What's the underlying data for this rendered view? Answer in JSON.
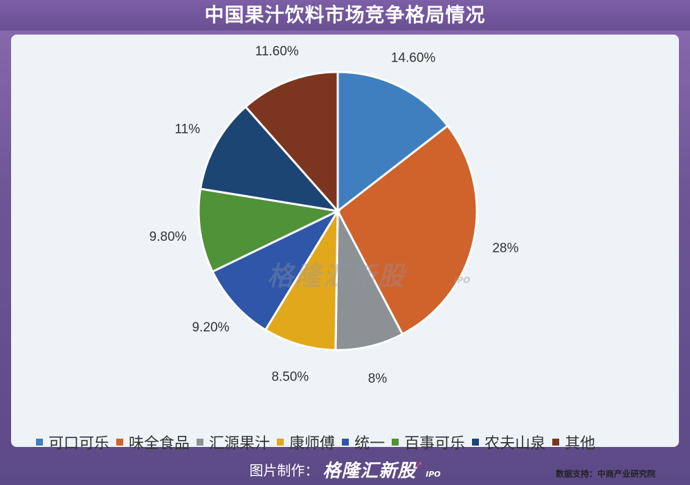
{
  "title": "中国果汁饮料市场竞争格局情况",
  "chart_data": {
    "type": "pie",
    "title": "",
    "slices": [
      {
        "name": "可口可乐",
        "value": 14.6,
        "label": "14.60%",
        "color": "#3f7fc0"
      },
      {
        "name": "味全食品",
        "value": 28,
        "label": "28%",
        "color": "#d0622b"
      },
      {
        "name": "汇源果汁",
        "value": 8,
        "label": "8%",
        "color": "#8b9195"
      },
      {
        "name": "康师傅",
        "value": 8.5,
        "label": "8.50%",
        "color": "#e2a81c"
      },
      {
        "name": "统一",
        "value": 9.2,
        "label": "9.20%",
        "color": "#2f56a8"
      },
      {
        "name": "百事可乐",
        "value": 9.8,
        "label": "9.80%",
        "color": "#4f9238"
      },
      {
        "name": "农夫山泉",
        "value": 11,
        "label": "11%",
        "color": "#1c4573"
      },
      {
        "name": "其他",
        "value": 11.6,
        "label": "11.60%",
        "color": "#7c3620"
      }
    ],
    "legend_position": "bottom"
  },
  "watermark": {
    "text": "格隆汇新股",
    "sub": "IPO"
  },
  "source": "数据支持：中商产业研究院",
  "footer": {
    "label": "图片制作：",
    "brand": "格隆汇新股",
    "brand_sub": "IPO"
  }
}
